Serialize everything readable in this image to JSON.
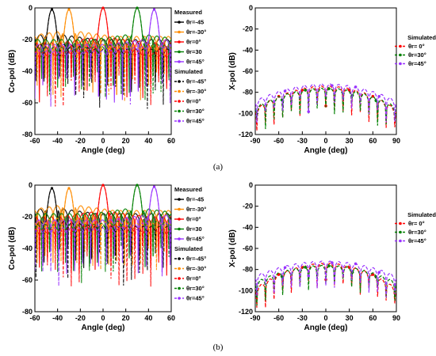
{
  "colors": {
    "black": "#000000",
    "orange": "#ff8c00",
    "red": "#ff0000",
    "green": "#008000",
    "purple": "#9933ff"
  },
  "panel_labels": [
    "(a)",
    "(b)"
  ],
  "chart_data": [
    {
      "id": "a-copol",
      "type": "line",
      "xlabel": "Angle (deg)",
      "ylabel": "Co-pol (dB)",
      "xlim": [
        -60,
        60
      ],
      "ylim": [
        -80,
        0
      ],
      "xticks": [
        -60,
        -40,
        -20,
        0,
        20,
        40,
        60
      ],
      "yticks": [
        0,
        -20,
        -40,
        -60,
        -80
      ],
      "legend_measured_title": "Measured",
      "legend_simulated_title": "Simulated",
      "series": [
        {
          "name": "θr=-45",
          "group": "Measured",
          "color": "#000000",
          "dash": "solid",
          "peak": -45,
          "peak_db": -1,
          "floor": -30
        },
        {
          "name": "θr=-30°",
          "group": "Measured",
          "color": "#ff8c00",
          "dash": "solid",
          "peak": -30,
          "peak_db": -1,
          "floor": -28
        },
        {
          "name": "θr=0°",
          "group": "Measured",
          "color": "#ff0000",
          "dash": "solid",
          "peak": 0,
          "peak_db": 0,
          "floor": -32
        },
        {
          "name": "θr=30",
          "group": "Measured",
          "color": "#008000",
          "dash": "solid",
          "peak": 30,
          "peak_db": 0,
          "floor": -30
        },
        {
          "name": "θr=45°",
          "group": "Measured",
          "color": "#9933ff",
          "dash": "solid",
          "peak": 45,
          "peak_db": -1,
          "floor": -33
        },
        {
          "name": "θr=-45°",
          "group": "Simulated",
          "color": "#000000",
          "dash": "dashed",
          "peak": -45,
          "peak_db": -1,
          "floor": -36
        },
        {
          "name": "θr=-30°",
          "group": "Simulated",
          "color": "#ff8c00",
          "dash": "dashed",
          "peak": -30,
          "peak_db": -1,
          "floor": -34
        },
        {
          "name": "θr=0°",
          "group": "Simulated",
          "color": "#ff0000",
          "dash": "dashed",
          "peak": 0,
          "peak_db": 0,
          "floor": -38
        },
        {
          "name": "θr=30°",
          "group": "Simulated",
          "color": "#008000",
          "dash": "dashed",
          "peak": 30,
          "peak_db": 0,
          "floor": -35
        },
        {
          "name": "θr=45°",
          "group": "Simulated",
          "color": "#9933ff",
          "dash": "dashed",
          "peak": 45,
          "peak_db": -1,
          "floor": -37
        }
      ]
    },
    {
      "id": "a-xpol",
      "type": "line",
      "xlabel": "Angle (deg)",
      "ylabel": "X-pol (dB)",
      "xlim": [
        -90,
        90
      ],
      "ylim": [
        -120,
        0
      ],
      "xticks": [
        -90,
        -60,
        -30,
        0,
        30,
        60,
        90
      ],
      "yticks": [
        0,
        -20,
        -40,
        -60,
        -80,
        -100,
        -120
      ],
      "legend_simulated_title": "Simulated",
      "series": [
        {
          "name": "θr= 0°",
          "color": "#ff0000",
          "dash": "dashed",
          "top": -74,
          "edge": -96
        },
        {
          "name": "θr=30°",
          "color": "#008000",
          "dash": "dashed",
          "top": -76,
          "edge": -94
        },
        {
          "name": "θr=45°",
          "color": "#9933ff",
          "dash": "dashed",
          "top": -72,
          "edge": -88
        }
      ]
    },
    {
      "id": "b-copol",
      "type": "line",
      "xlabel": "Angle (deg)",
      "ylabel": "Co-pol (dB)",
      "xlim": [
        -60,
        60
      ],
      "ylim": [
        -80,
        0
      ],
      "xticks": [
        -60,
        -40,
        -20,
        0,
        20,
        40,
        60
      ],
      "yticks": [
        0,
        -20,
        -40,
        -60,
        -80
      ],
      "legend_measured_title": "Measured",
      "legend_simulated_title": "Simulated",
      "series": [
        {
          "name": "θr=-45",
          "group": "Measured",
          "color": "#000000",
          "dash": "solid",
          "peak": -45,
          "peak_db": -2,
          "floor": -28
        },
        {
          "name": "θr=-30°",
          "group": "Measured",
          "color": "#ff8c00",
          "dash": "solid",
          "peak": -30,
          "peak_db": -2,
          "floor": -26
        },
        {
          "name": "θr=0°",
          "group": "Measured",
          "color": "#ff0000",
          "dash": "solid",
          "peak": 0,
          "peak_db": 0,
          "floor": -30
        },
        {
          "name": "θr=30",
          "group": "Measured",
          "color": "#008000",
          "dash": "solid",
          "peak": 30,
          "peak_db": 0,
          "floor": -28
        },
        {
          "name": "θr=45°",
          "group": "Measured",
          "color": "#9933ff",
          "dash": "solid",
          "peak": 45,
          "peak_db": -1,
          "floor": -32
        },
        {
          "name": "θr=-45°",
          "group": "Simulated",
          "color": "#000000",
          "dash": "dashed",
          "peak": -45,
          "peak_db": -2,
          "floor": -36
        },
        {
          "name": "θr=-30°",
          "group": "Simulated",
          "color": "#ff8c00",
          "dash": "dashed",
          "peak": -30,
          "peak_db": -2,
          "floor": -34
        },
        {
          "name": "θr=0°",
          "group": "Simulated",
          "color": "#ff0000",
          "dash": "dashed",
          "peak": 0,
          "peak_db": 0,
          "floor": -38
        },
        {
          "name": "θr=30°",
          "group": "Simulated",
          "color": "#008000",
          "dash": "dashed",
          "peak": 30,
          "peak_db": 0,
          "floor": -35
        },
        {
          "name": "θr=45°",
          "group": "Simulated",
          "color": "#9933ff",
          "dash": "dashed",
          "peak": 45,
          "peak_db": -1,
          "floor": -37
        }
      ]
    },
    {
      "id": "b-xpol",
      "type": "line",
      "xlabel": "Angle (deg)",
      "ylabel": "X-pol (dB)",
      "xlim": [
        -90,
        90
      ],
      "ylim": [
        -120,
        0
      ],
      "xticks": [
        -90,
        -60,
        -30,
        0,
        30,
        60,
        90
      ],
      "yticks": [
        0,
        -20,
        -40,
        -60,
        -80,
        -100,
        -120
      ],
      "legend_simulated_title": "Simulated",
      "series": [
        {
          "name": "θr= 0°",
          "color": "#ff0000",
          "dash": "dashed",
          "top": -74,
          "edge": -98
        },
        {
          "name": "θr=30°",
          "color": "#008000",
          "dash": "dashed",
          "top": -76,
          "edge": -92
        },
        {
          "name": "θr=45°",
          "color": "#9933ff",
          "dash": "dashed",
          "top": -72,
          "edge": -86
        }
      ]
    }
  ]
}
